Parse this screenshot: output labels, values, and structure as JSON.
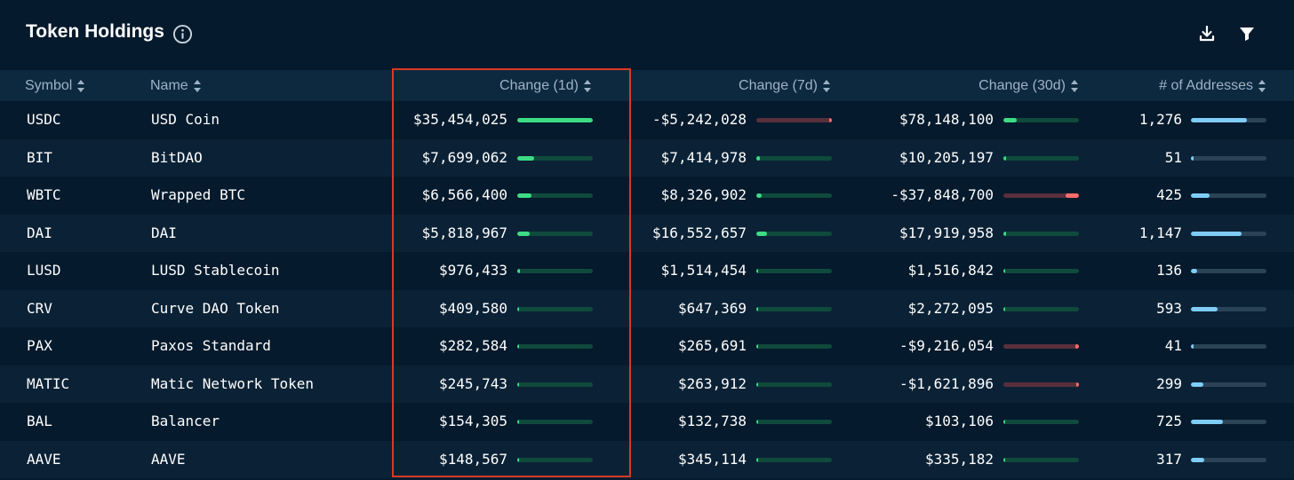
{
  "header": {
    "title": "Token Holdings",
    "icons": {
      "info": "info-icon",
      "download": "download-icon",
      "filter": "filter-icon"
    }
  },
  "colors": {
    "background": "#051a2c",
    "header_row": "#0d2940",
    "positive": "#3ddc84",
    "negative": "#ff6b6b",
    "addresses": "#7fcdf7",
    "highlight_border": "#d63a26"
  },
  "columns": {
    "symbol": "Symbol",
    "name": "Name",
    "change_1d": "Change (1d)",
    "change_7d": "Change (7d)",
    "change_30d": "Change (30d)",
    "addresses": "# of Addresses"
  },
  "rows": [
    {
      "symbol": "USDC",
      "name": "USD Coin",
      "c1d": "$35,454,025",
      "c1d_level": 1.0,
      "c1d_neg": false,
      "c7d": "-$5,242,028",
      "c7d_level": 0.04,
      "c7d_neg": true,
      "c30d": "$78,148,100",
      "c30d_level": 0.18,
      "c30d_neg": false,
      "addr": "1,276",
      "addr_level": 0.74
    },
    {
      "symbol": "BIT",
      "name": "BitDAO",
      "c1d": "$7,699,062",
      "c1d_level": 0.22,
      "c1d_neg": false,
      "c7d": "$7,414,978",
      "c7d_level": 0.05,
      "c7d_neg": false,
      "c30d": "$10,205,197",
      "c30d_level": 0.02,
      "c30d_neg": false,
      "addr": "51",
      "addr_level": 0.03
    },
    {
      "symbol": "WBTC",
      "name": "Wrapped BTC",
      "c1d": "$6,566,400",
      "c1d_level": 0.19,
      "c1d_neg": false,
      "c7d": "$8,326,902",
      "c7d_level": 0.07,
      "c7d_neg": false,
      "c30d": "-$37,848,700",
      "c30d_level": 0.18,
      "c30d_neg": true,
      "addr": "425",
      "addr_level": 0.25
    },
    {
      "symbol": "DAI",
      "name": "DAI",
      "c1d": "$5,818,967",
      "c1d_level": 0.16,
      "c1d_neg": false,
      "c7d": "$16,552,657",
      "c7d_level": 0.14,
      "c7d_neg": false,
      "c30d": "$17,919,958",
      "c30d_level": 0.03,
      "c30d_neg": false,
      "addr": "1,147",
      "addr_level": 0.67
    },
    {
      "symbol": "LUSD",
      "name": "LUSD Stablecoin",
      "c1d": "$976,433",
      "c1d_level": 0.02,
      "c1d_neg": false,
      "c7d": "$1,514,454",
      "c7d_level": 0.0,
      "c7d_neg": false,
      "c30d": "$1,516,842",
      "c30d_level": 0.0,
      "c30d_neg": false,
      "addr": "136",
      "addr_level": 0.08
    },
    {
      "symbol": "CRV",
      "name": "Curve DAO Token",
      "c1d": "$409,580",
      "c1d_level": 0.0,
      "c1d_neg": false,
      "c7d": "$647,369",
      "c7d_level": 0.0,
      "c7d_neg": false,
      "c30d": "$2,272,095",
      "c30d_level": 0.0,
      "c30d_neg": false,
      "addr": "593",
      "addr_level": 0.35
    },
    {
      "symbol": "PAX",
      "name": "Paxos Standard",
      "c1d": "$282,584",
      "c1d_level": 0.0,
      "c1d_neg": false,
      "c7d": "$265,691",
      "c7d_level": 0.0,
      "c7d_neg": false,
      "c30d": "-$9,216,054",
      "c30d_level": 0.05,
      "c30d_neg": true,
      "addr": "41",
      "addr_level": 0.02
    },
    {
      "symbol": "MATIC",
      "name": "Matic Network Token",
      "c1d": "$245,743",
      "c1d_level": 0.0,
      "c1d_neg": false,
      "c7d": "$263,912",
      "c7d_level": 0.0,
      "c7d_neg": false,
      "c30d": "-$1,621,896",
      "c30d_level": 0.01,
      "c30d_neg": true,
      "addr": "299",
      "addr_level": 0.17
    },
    {
      "symbol": "BAL",
      "name": "Balancer",
      "c1d": "$154,305",
      "c1d_level": 0.0,
      "c1d_neg": false,
      "c7d": "$132,738",
      "c7d_level": 0.0,
      "c7d_neg": false,
      "c30d": "$103,106",
      "c30d_level": 0.0,
      "c30d_neg": false,
      "addr": "725",
      "addr_level": 0.42
    },
    {
      "symbol": "AAVE",
      "name": "AAVE",
      "c1d": "$148,567",
      "c1d_level": 0.0,
      "c1d_neg": false,
      "c7d": "$345,114",
      "c7d_level": 0.0,
      "c7d_neg": false,
      "c30d": "$335,182",
      "c30d_level": 0.0,
      "c30d_neg": false,
      "addr": "317",
      "addr_level": 0.18
    }
  ]
}
